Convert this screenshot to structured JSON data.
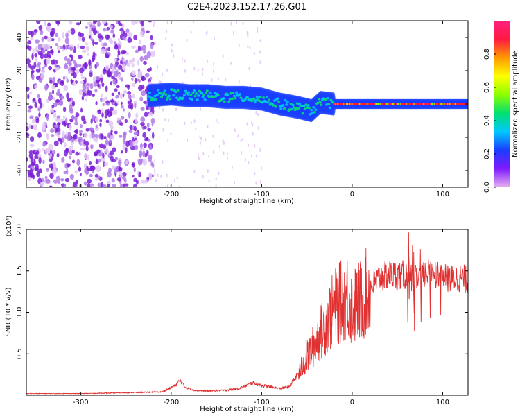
{
  "title": "C2E4.2023.152.17.26.G01",
  "colors": {
    "signal": "#e03030",
    "noise_purple": "#7a1fd6",
    "colorbar_stops": [
      "#e6b0ee",
      "#7f1bff",
      "#1a3dff",
      "#00c8ff",
      "#00e070",
      "#8cff00",
      "#ffff00",
      "#ff9a00",
      "#ff1a40",
      "#ff2080"
    ]
  },
  "chart_data": [
    {
      "type": "heatmap",
      "title": "",
      "xlabel": "Height of straight line (km)",
      "ylabel": "Frequency (Hz)",
      "xlim": [
        -360,
        128
      ],
      "ylim": [
        -50,
        50
      ],
      "xticks": [
        -300,
        -200,
        -100,
        0,
        100
      ],
      "xtick_labels": [
        "-300",
        "-200",
        "-100",
        "0",
        "100"
      ],
      "yticks": [
        -40,
        -20,
        0,
        20,
        40
      ],
      "ytick_labels": [
        "-40",
        "-20",
        "0",
        "20",
        "40"
      ],
      "colorbar": {
        "label": "Normalized spectral amplitude",
        "range": [
          0,
          1
        ],
        "ticks": [
          0.0,
          0.2,
          0.4,
          0.6,
          0.8
        ],
        "tick_labels": [
          "0.0",
          "0.2",
          "0.4",
          "0.6",
          "0.8"
        ]
      },
      "ridge": {
        "x": [
          -225,
          -200,
          -180,
          -160,
          -140,
          -120,
          -100,
          -80,
          -60,
          -45,
          -35,
          -20,
          0,
          50,
          100,
          128
        ],
        "freq": [
          5,
          6,
          5,
          5,
          4,
          4,
          3,
          0,
          -2,
          -4,
          1,
          0,
          0,
          0,
          0,
          0
        ]
      },
      "noise_region": [
        -360,
        -220
      ]
    },
    {
      "type": "line",
      "title": "",
      "xlabel": "Height of straight line (km)",
      "ylabel": "SNR (10 * v/v)",
      "y_multiplier_label": "(x10⁴)",
      "xlim": [
        -360,
        128
      ],
      "ylim": [
        0,
        2.0
      ],
      "xticks": [
        -300,
        -200,
        -100,
        0,
        100
      ],
      "xtick_labels": [
        "-300",
        "-200",
        "-100",
        "0",
        "100"
      ],
      "yticks": [
        0.5,
        1.0,
        1.5,
        2.0
      ],
      "ytick_labels": [
        "0.5",
        "1.0",
        "1.5",
        "2.0"
      ],
      "series": [
        {
          "x": [
            -360,
            -300,
            -250,
            -210,
            -195,
            -190,
            -185,
            -175,
            -160,
            -140,
            -125,
            -110,
            -100,
            -80,
            -70,
            -60,
            -55,
            -50,
            -45,
            -40,
            -35,
            -30,
            -25,
            -20,
            -15,
            -10,
            -5,
            0,
            10,
            20,
            30,
            40,
            60,
            70,
            80,
            90,
            95,
            100,
            110,
            120,
            128
          ],
          "y": [
            0.02,
            0.02,
            0.03,
            0.04,
            0.12,
            0.18,
            0.1,
            0.06,
            0.05,
            0.06,
            0.08,
            0.15,
            0.12,
            0.08,
            0.1,
            0.25,
            0.35,
            0.45,
            0.55,
            0.65,
            0.75,
            0.85,
            0.95,
            1.05,
            1.1,
            1.15,
            1.2,
            1.05,
            1.15,
            1.3,
            1.42,
            1.45,
            1.45,
            1.4,
            1.45,
            1.5,
            1.45,
            1.42,
            1.4,
            1.42,
            1.38
          ]
        }
      ]
    }
  ]
}
